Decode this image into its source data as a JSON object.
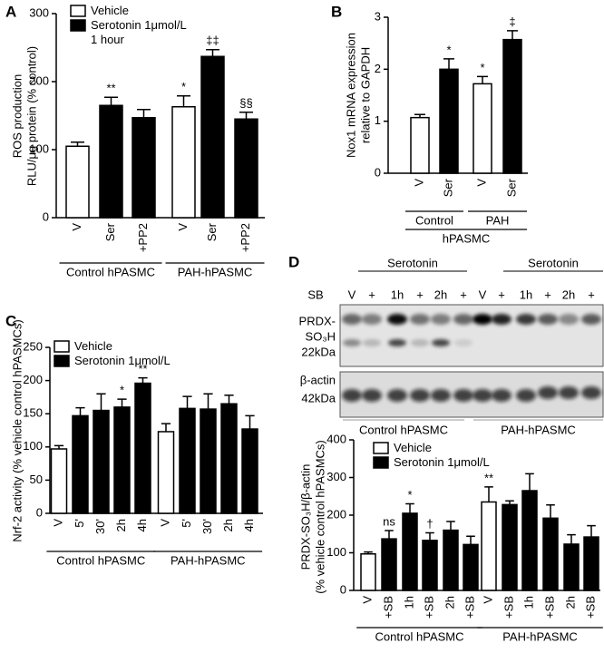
{
  "chart_data": [
    {
      "type": "bar",
      "label": "A",
      "ylabel": [
        "ROS production",
        "RLU/μg protein (% control)"
      ],
      "ylim": [
        0,
        300
      ],
      "yticks": [
        0,
        100,
        200,
        300
      ],
      "groups": [
        {
          "name": "Control hPASMC",
          "categories": [
            "V",
            "Ser",
            "+PP2"
          ]
        },
        {
          "name": "PAH-hPASMC",
          "categories": [
            "V",
            "Ser",
            "+PP2"
          ]
        }
      ],
      "series": [
        {
          "name": "Vehicle",
          "color": "#ffffff",
          "values": [
            105,
            null,
            null,
            163,
            null,
            null
          ],
          "errors": [
            6,
            null,
            null,
            16,
            null,
            null
          ]
        },
        {
          "name": "Serotonin 1μmol/L",
          "color": "#000000",
          "values": [
            null,
            165,
            147,
            null,
            237,
            145
          ],
          "errors": [
            null,
            12,
            12,
            null,
            10,
            10
          ]
        }
      ],
      "legend_note": "1 hour",
      "annotations": [
        null,
        "**",
        null,
        "*",
        "‡‡",
        "§§"
      ]
    },
    {
      "type": "bar",
      "label": "B",
      "ylabel": [
        "Nox1 mRNA expression",
        "relative to GAPDH"
      ],
      "ylim": [
        0,
        3
      ],
      "yticks": [
        0,
        1,
        2,
        3
      ],
      "groups": [
        {
          "name": "Control",
          "categories": [
            "V",
            "Ser"
          ]
        },
        {
          "name": "PAH",
          "categories": [
            "V",
            "Ser"
          ]
        }
      ],
      "group_title": "hPASMC",
      "series": [
        {
          "color": "#ffffff",
          "values": [
            1.07,
            null,
            1.72,
            null
          ],
          "errors": [
            0.06,
            null,
            0.14,
            null
          ]
        },
        {
          "color": "#000000",
          "values": [
            null,
            2.0,
            null,
            2.57
          ],
          "errors": [
            null,
            0.2,
            null,
            0.17
          ]
        }
      ],
      "annotations": [
        null,
        "*",
        "*",
        "‡"
      ]
    },
    {
      "type": "bar",
      "label": "C",
      "ylabel": [
        "Nrf-2 activity (% vehicle control hPASMCs)"
      ],
      "ylim": [
        0,
        250
      ],
      "yticks": [
        0,
        50,
        100,
        150,
        200,
        250
      ],
      "groups": [
        {
          "name": "Control hPASMC",
          "categories": [
            "V",
            "5'",
            "30'",
            "2h",
            "4h"
          ]
        },
        {
          "name": "PAH-hPASMC",
          "categories": [
            "V",
            "5'",
            "30'",
            "2h",
            "4h"
          ]
        }
      ],
      "series": [
        {
          "name": "Vehicle",
          "color": "#ffffff",
          "values": [
            97,
            null,
            null,
            null,
            null,
            123,
            null,
            null,
            null,
            null
          ],
          "errors": [
            5,
            null,
            null,
            null,
            null,
            12,
            null,
            null,
            null,
            null
          ]
        },
        {
          "name": "Serotonin 1μmol/L",
          "color": "#000000",
          "values": [
            null,
            147,
            155,
            160,
            196,
            null,
            158,
            157,
            165,
            127
          ],
          "errors": [
            null,
            12,
            25,
            12,
            8,
            null,
            18,
            23,
            13,
            20
          ]
        }
      ],
      "annotations": [
        null,
        null,
        null,
        "*",
        "**",
        null,
        null,
        null,
        null,
        null
      ]
    },
    {
      "type": "blot",
      "label": "D",
      "treatment_labels": [
        "Serotonin",
        "Serotonin"
      ],
      "row_label": "SB",
      "lanes": [
        "V",
        "+",
        "1h",
        "+",
        "2h",
        "+",
        "V",
        "+",
        "1h",
        "+",
        "2h",
        "+"
      ],
      "band_labels": [
        [
          "PRDX-",
          "SO₃H",
          "22kDa"
        ],
        [
          "β-actin",
          "42kDa"
        ]
      ],
      "groups": [
        "Control hPASMC",
        "PAH-hPASMC"
      ]
    },
    {
      "type": "bar",
      "ylabel": [
        "PRDX-SO₃H/β-actin",
        "(% vehicle control hPASMCs)"
      ],
      "ylim": [
        0,
        400
      ],
      "yticks": [
        0,
        100,
        200,
        300,
        400
      ],
      "groups": [
        {
          "name": "Control hPASMC",
          "categories": [
            "V",
            "+SB",
            "1h",
            "+SB",
            "2h",
            "+SB"
          ]
        },
        {
          "name": "PAH-hPASMC",
          "categories": [
            "V",
            "+SB",
            "1h",
            "+SB",
            "2h",
            "+SB"
          ]
        }
      ],
      "series": [
        {
          "name": "Vehicle",
          "color": "#ffffff",
          "values": [
            97,
            null,
            null,
            null,
            null,
            null,
            235,
            null,
            null,
            null,
            null,
            null
          ],
          "errors": [
            5,
            null,
            null,
            null,
            null,
            null,
            40,
            null,
            null,
            null,
            null,
            null
          ]
        },
        {
          "name": "Serotonin 1μmol/L",
          "color": "#000000",
          "values": [
            null,
            137,
            205,
            133,
            160,
            122,
            null,
            228,
            265,
            192,
            123,
            142
          ],
          "errors": [
            null,
            22,
            25,
            20,
            23,
            22,
            null,
            10,
            45,
            35,
            25,
            30
          ]
        }
      ],
      "annotations": [
        null,
        "ns",
        "*",
        "†",
        null,
        null,
        "**",
        null,
        null,
        null,
        null,
        null
      ]
    }
  ]
}
